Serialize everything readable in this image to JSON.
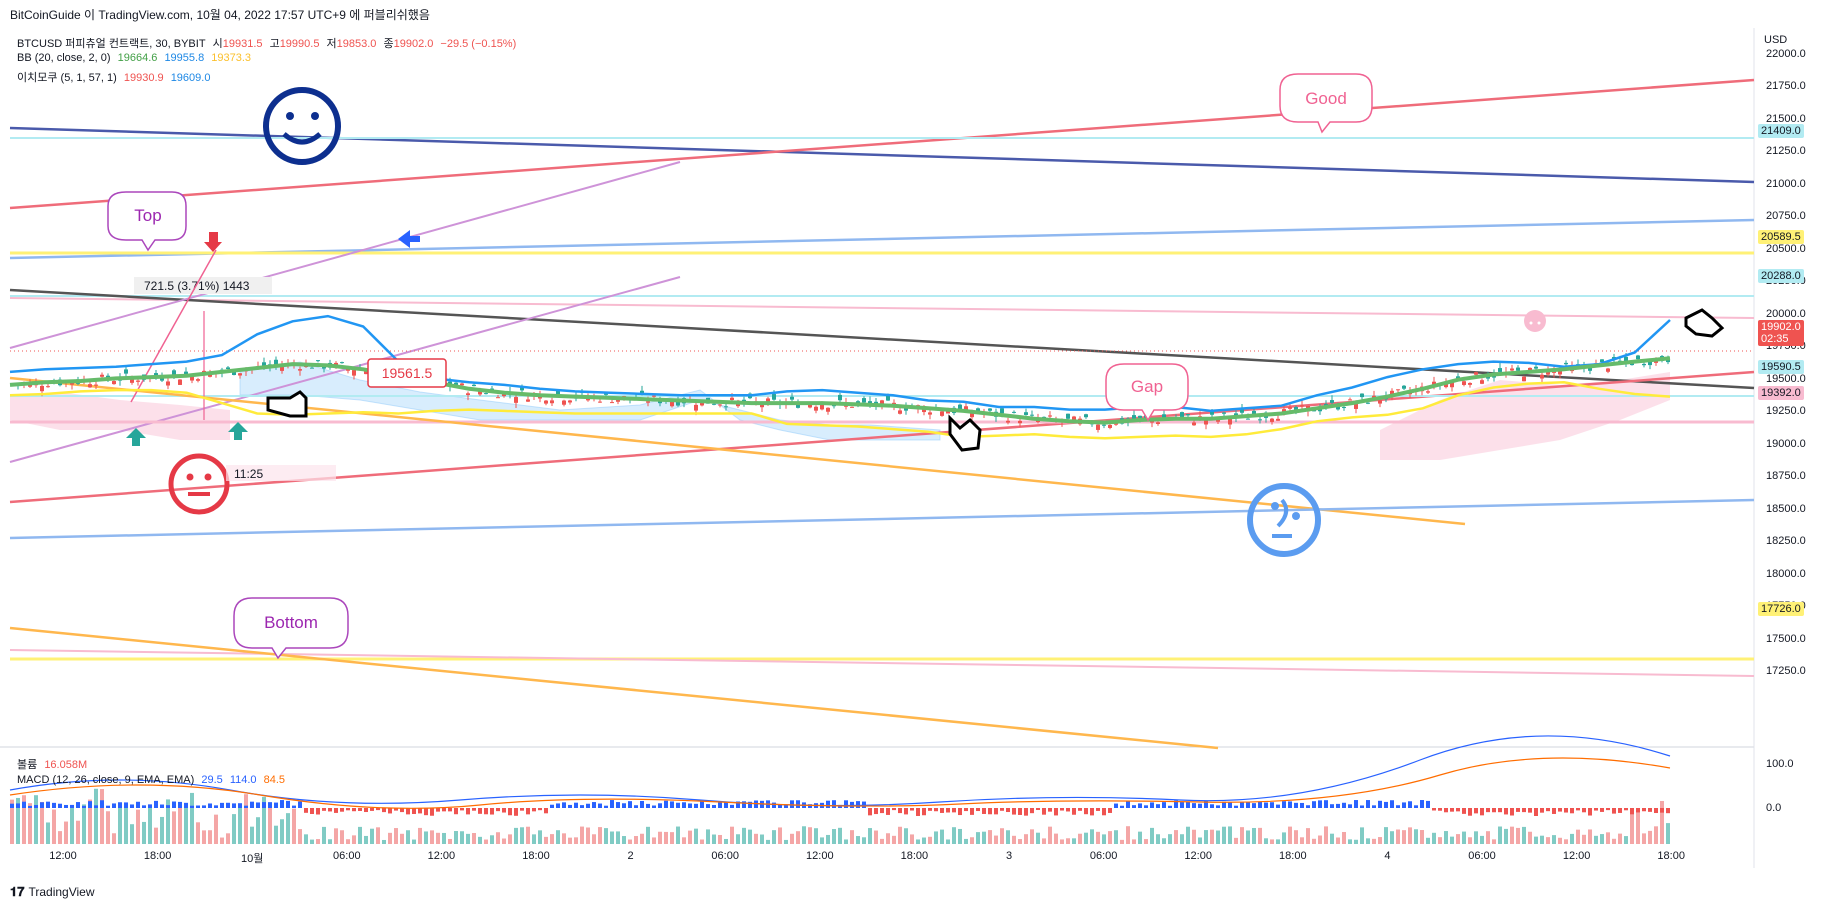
{
  "header": {
    "publisher": "BitCoinGuide 이 TradingView.com, 10월 04, 2022 17:57 UTC+9 에 퍼블리쉬했음"
  },
  "legend": {
    "symbol": "BTCUSD 퍼피츄얼 컨트랙트, 30, BYBIT",
    "ohlc": {
      "o_label": "시",
      "o": "19931.5",
      "h_label": "고",
      "h": "19990.5",
      "l_label": "저",
      "l": "19853.0",
      "c_label": "종",
      "c": "19902.0",
      "chg": "−29.5 (−0.15%)"
    },
    "bb": {
      "name": "BB (20, close, 2, 0)",
      "v1": "19664.6",
      "v2": "19955.8",
      "v3": "19373.3"
    },
    "ichimoku": {
      "name": "이치모쿠 (5, 1, 57, 1)",
      "v1": "19930.9",
      "v2": "19609.0"
    },
    "volume": {
      "name": "볼륨",
      "v": "16.058M"
    },
    "macd": {
      "name": "MACD (12, 26, close, 9, EMA, EMA)",
      "v1": "29.5",
      "v2": "114.0",
      "v3": "84.5"
    }
  },
  "footer": {
    "brand": "TradingView"
  },
  "annotations": {
    "top": "Top",
    "good": "Good",
    "gap": "Gap",
    "bottom": "Bottom",
    "measure": "721.5 (3.71%) 1443",
    "price_note": "19561.5",
    "time_note": "11:25"
  },
  "colors": {
    "up": "#26a69a",
    "down": "#ef5350",
    "bb_mid": "#66bb6a",
    "bb_up": "#2196f3",
    "bb_low": "#ffeb3b",
    "accent_pink": "#f06292",
    "accent_purple": "#9c27b0",
    "navy": "#0d2f8f",
    "blue_face": "#5b9cf0"
  },
  "chart_data": {
    "type": "candlestick",
    "y_unit": "USD",
    "y_ticks": [
      "22000.0",
      "21750.0",
      "21500.0",
      "21250.0",
      "21000.0",
      "20750.0",
      "20500.0",
      "20250.0",
      "20000.0",
      "19750.0",
      "19500.0",
      "19250.0",
      "19000.0",
      "18750.0",
      "18500.0",
      "18250.0",
      "18000.0",
      "17750.0",
      "17500.0",
      "17250.0"
    ],
    "x_ticks": [
      "12:00",
      "18:00",
      "10월",
      "06:00",
      "12:00",
      "18:00",
      "2",
      "06:00",
      "12:00",
      "18:00",
      "3",
      "06:00",
      "12:00",
      "18:00",
      "4",
      "06:00",
      "12:00",
      "18:00"
    ],
    "price_badges": [
      {
        "label": "21409.0",
        "value": 21409.0
      },
      {
        "label": "20589.5",
        "value": 20589.5
      },
      {
        "label": "20288.0",
        "value": 20288.0
      },
      {
        "label": "19902.0",
        "value": 19902.0,
        "sub": "02:35"
      },
      {
        "label": "19590.5",
        "value": 19590.5
      },
      {
        "label": "19392.0",
        "value": 19392.0
      },
      {
        "label": "17726.0",
        "value": 17726.0
      }
    ],
    "bb_middle": [
      19460,
      19480,
      19490,
      19510,
      19520,
      19530,
      19560,
      19590,
      19620,
      19610,
      19580,
      19530,
      19480,
      19430,
      19400,
      19380,
      19370,
      19360,
      19350,
      19340,
      19330,
      19320,
      19320,
      19320,
      19310,
      19300,
      19280,
      19260,
      19230,
      19200,
      19180,
      19170,
      19190,
      19200,
      19200,
      19220,
      19240,
      19280,
      19320,
      19370,
      19430,
      19500,
      19540,
      19560,
      19580,
      19610,
      19640,
      19665
    ],
    "bb_upper": [
      19560,
      19580,
      19590,
      19600,
      19620,
      19640,
      19690,
      19850,
      19950,
      19990,
      19910,
      19640,
      19510,
      19480,
      19460,
      19430,
      19410,
      19400,
      19390,
      19380,
      19380,
      19380,
      19410,
      19420,
      19400,
      19380,
      19340,
      19330,
      19290,
      19290,
      19270,
      19270,
      19290,
      19290,
      19260,
      19280,
      19300,
      19380,
      19440,
      19520,
      19580,
      19620,
      19640,
      19630,
      19600,
      19620,
      19710,
      19960
    ],
    "bb_lower": [
      19380,
      19390,
      19410,
      19420,
      19420,
      19400,
      19320,
      19240,
      19230,
      19240,
      19250,
      19240,
      19260,
      19270,
      19260,
      19250,
      19240,
      19240,
      19240,
      19240,
      19240,
      19240,
      19160,
      19150,
      19140,
      19120,
      19100,
      19060,
      19070,
      19080,
      19060,
      19050,
      19060,
      19070,
      19060,
      19080,
      19120,
      19180,
      19210,
      19230,
      19280,
      19380,
      19440,
      19470,
      19480,
      19430,
      19390,
      19370
    ],
    "volume": {
      "label": "볼륨",
      "last": "16.058M"
    },
    "macd": {
      "ticks": [
        "100.0",
        "0.0"
      ]
    }
  }
}
